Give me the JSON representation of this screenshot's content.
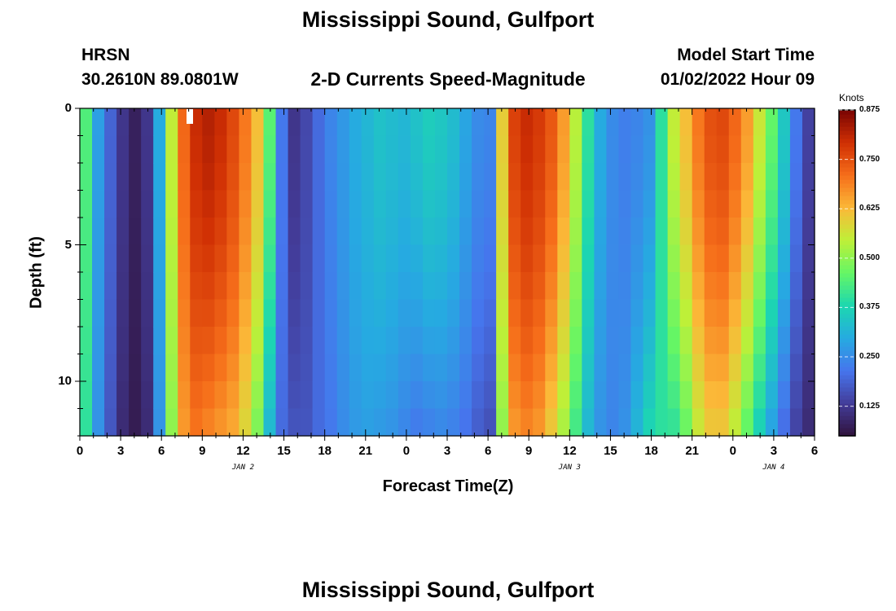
{
  "title": "Mississippi Sound, Gulfport",
  "footer_title": "Mississippi Sound, Gulfport",
  "station": {
    "id": "HRSN",
    "coords": "30.2610N  89.0801W"
  },
  "subtitle": "2-D Currents Speed-Magnitude",
  "model_start": {
    "label": "Model Start Time",
    "value": "01/02/2022 Hour 09"
  },
  "chart_data": {
    "type": "heatmap",
    "title": "2-D Currents Speed-Magnitude",
    "xlabel": "Forecast Time(Z)",
    "ylabel": "Depth (ft)",
    "x_range_hours": [
      0,
      54
    ],
    "y_range_ft": [
      0,
      12
    ],
    "y_inverted": true,
    "x_ticks": [
      {
        "hour": 0,
        "label": "0"
      },
      {
        "hour": 3,
        "label": "3"
      },
      {
        "hour": 6,
        "label": "6"
      },
      {
        "hour": 9,
        "label": "9"
      },
      {
        "hour": 12,
        "label": "12"
      },
      {
        "hour": 15,
        "label": "15"
      },
      {
        "hour": 18,
        "label": "18"
      },
      {
        "hour": 21,
        "label": "21"
      },
      {
        "hour": 24,
        "label": "0"
      },
      {
        "hour": 27,
        "label": "3"
      },
      {
        "hour": 30,
        "label": "6"
      },
      {
        "hour": 33,
        "label": "9"
      },
      {
        "hour": 36,
        "label": "12"
      },
      {
        "hour": 39,
        "label": "15"
      },
      {
        "hour": 42,
        "label": "18"
      },
      {
        "hour": 45,
        "label": "21"
      },
      {
        "hour": 48,
        "label": "0"
      },
      {
        "hour": 51,
        "label": "3"
      },
      {
        "hour": 54,
        "label": "6"
      }
    ],
    "day_labels": [
      {
        "hour": 12,
        "label": "JAN 2"
      },
      {
        "hour": 36,
        "label": "JAN 3"
      },
      {
        "hour": 51,
        "label": "JAN 4"
      }
    ],
    "y_ticks": [
      {
        "depth": 0,
        "label": "0"
      },
      {
        "depth": 5,
        "label": "5"
      },
      {
        "depth": 10,
        "label": "10"
      }
    ],
    "colorbar": {
      "label": "Knots",
      "min": 0.05,
      "max": 0.875,
      "ticks": [
        {
          "value": 0.125,
          "label": "0.125"
        },
        {
          "value": 0.25,
          "label": "0.250"
        },
        {
          "value": 0.375,
          "label": "0.375"
        },
        {
          "value": 0.5,
          "label": "0.500"
        },
        {
          "value": 0.625,
          "label": "0.625"
        },
        {
          "value": 0.75,
          "label": "0.750"
        },
        {
          "value": 0.875,
          "label": "0.875"
        }
      ]
    },
    "depth_levels_ft": [
      0.5,
      1.5,
      2.5,
      3.5,
      4.5,
      5.5,
      6.5,
      7.5,
      8.5,
      9.5,
      10.5,
      11.5
    ],
    "surface_speed_by_hour_knots": [
      0.44,
      0.28,
      0.19,
      0.12,
      0.08,
      0.12,
      0.3,
      0.55,
      0.72,
      0.8,
      0.82,
      0.8,
      0.76,
      0.7,
      0.62,
      0.45,
      0.22,
      0.12,
      0.15,
      0.2,
      0.24,
      0.27,
      0.3,
      0.32,
      0.34,
      0.33,
      0.32,
      0.34,
      0.36,
      0.35,
      0.33,
      0.29,
      0.25,
      0.24,
      0.6,
      0.77,
      0.8,
      0.78,
      0.74,
      0.66,
      0.54,
      0.4,
      0.3,
      0.25,
      0.23,
      0.24,
      0.26,
      0.4,
      0.55,
      0.62,
      0.7,
      0.75,
      0.76,
      0.72,
      0.66,
      0.56,
      0.46,
      0.35,
      0.22,
      0.14
    ],
    "bottom_speed_by_hour_knots": [
      0.4,
      0.26,
      0.17,
      0.1,
      0.07,
      0.1,
      0.26,
      0.5,
      0.66,
      0.7,
      0.68,
      0.66,
      0.64,
      0.58,
      0.48,
      0.32,
      0.2,
      0.17,
      0.17,
      0.2,
      0.22,
      0.25,
      0.27,
      0.28,
      0.27,
      0.26,
      0.24,
      0.22,
      0.23,
      0.24,
      0.23,
      0.21,
      0.18,
      0.16,
      0.5,
      0.66,
      0.68,
      0.66,
      0.6,
      0.52,
      0.42,
      0.32,
      0.26,
      0.24,
      0.26,
      0.32,
      0.38,
      0.4,
      0.4,
      0.46,
      0.55,
      0.6,
      0.6,
      0.54,
      0.45,
      0.36,
      0.28,
      0.2,
      0.14,
      0.1
    ]
  }
}
